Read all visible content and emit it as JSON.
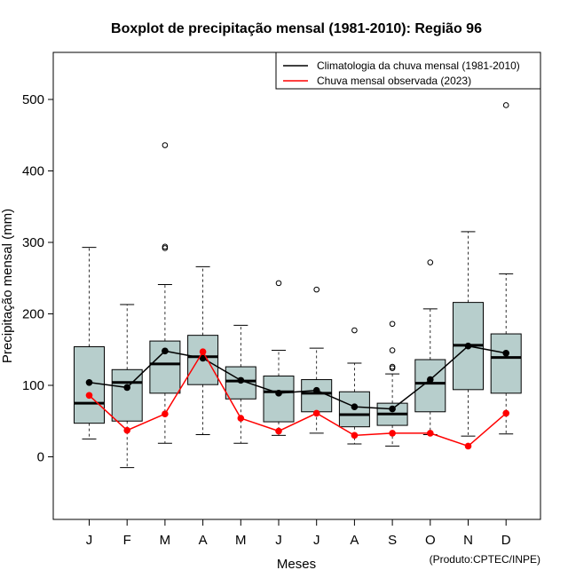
{
  "chart_data": {
    "type": "boxplot",
    "title": "Boxplot de precipitação mensal (1981-2010): Região 96",
    "xlabel": "Meses",
    "ylabel": "Precipitação mensal (mm)",
    "ylim": [
      -90,
      570
    ],
    "yticks": [
      0,
      100,
      200,
      300,
      400,
      500
    ],
    "categories": [
      "J",
      "F",
      "M",
      "A",
      "M",
      "J",
      "J",
      "A",
      "S",
      "O",
      "N",
      "D"
    ],
    "credit": "(Produto:CPTEC/INPE)",
    "legend": {
      "position": "top-right",
      "entries": [
        {
          "label": "Climatologia da chuva mensal (1981-2010)",
          "color": "#000000"
        },
        {
          "label": "Chuva mensal observada (2023)",
          "color": "#ff0000"
        }
      ]
    },
    "box_fill": "#b7cecc",
    "boxes": [
      {
        "whisker_low": 25,
        "q1": 47,
        "median": 75,
        "q3": 154,
        "whisker_high": 293,
        "outliers": []
      },
      {
        "whisker_low": -15,
        "q1": 50,
        "median": 104,
        "q3": 122,
        "whisker_high": 213,
        "outliers": []
      },
      {
        "whisker_low": 19,
        "q1": 89,
        "median": 130,
        "q3": 162,
        "whisker_high": 241,
        "outliers": [
          292,
          294,
          436
        ]
      },
      {
        "whisker_low": 31,
        "q1": 101,
        "median": 140,
        "q3": 170,
        "whisker_high": 266,
        "outliers": []
      },
      {
        "whisker_low": 19,
        "q1": 81,
        "median": 106,
        "q3": 126,
        "whisker_high": 184,
        "outliers": []
      },
      {
        "whisker_low": 30,
        "q1": 49,
        "median": 91,
        "q3": 113,
        "whisker_high": 149,
        "outliers": [
          243
        ]
      },
      {
        "whisker_low": 33,
        "q1": 63,
        "median": 89,
        "q3": 108,
        "whisker_high": 152,
        "outliers": [
          234
        ]
      },
      {
        "whisker_low": 18,
        "q1": 42,
        "median": 59,
        "q3": 91,
        "whisker_high": 131,
        "outliers": [
          177
        ]
      },
      {
        "whisker_low": 15,
        "q1": 44,
        "median": 60,
        "q3": 75,
        "whisker_high": 116,
        "outliers": [
          124,
          126,
          149,
          186
        ]
      },
      {
        "whisker_low": 31,
        "q1": 63,
        "median": 103,
        "q3": 136,
        "whisker_high": 207,
        "outliers": [
          272
        ]
      },
      {
        "whisker_low": 29,
        "q1": 94,
        "median": 156,
        "q3": 216,
        "whisker_high": 315,
        "outliers": []
      },
      {
        "whisker_low": 32,
        "q1": 89,
        "median": 139,
        "q3": 172,
        "whisker_high": 256,
        "outliers": [
          492
        ]
      }
    ],
    "series": [
      {
        "name": "Climatologia da chuva mensal (1981-2010)",
        "color": "#000000",
        "values": [
          104,
          97,
          148,
          138,
          107,
          89,
          93,
          70,
          67,
          108,
          155,
          145
        ]
      },
      {
        "name": "Chuva mensal observada (2023)",
        "color": "#ff0000",
        "values": [
          86,
          37,
          60,
          147,
          54,
          36,
          61,
          30,
          33,
          33,
          15,
          61
        ]
      }
    ]
  }
}
